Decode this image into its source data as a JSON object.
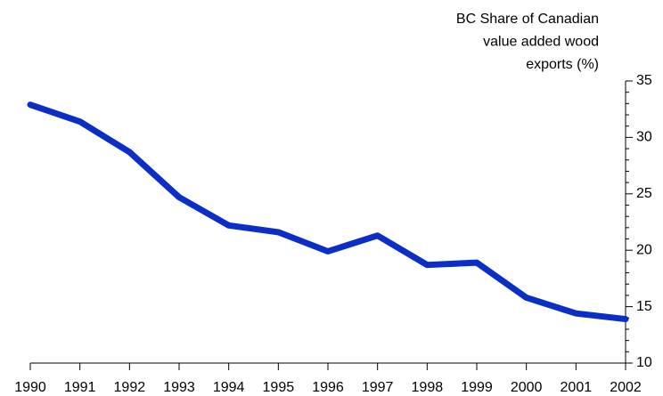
{
  "chart_data": {
    "type": "line",
    "y_label": [
      "BC Share of Canadian",
      "value added wood",
      "exports (%)"
    ],
    "x": [
      1990,
      1991,
      1992,
      1993,
      1994,
      1995,
      1996,
      1997,
      1998,
      1999,
      2000,
      2001,
      2002
    ],
    "series": [
      {
        "name": "BC Share",
        "color": "#0b2fc6",
        "values": [
          32.9,
          31.4,
          28.7,
          24.7,
          22.2,
          21.6,
          19.9,
          21.3,
          18.7,
          18.9,
          15.8,
          14.4,
          13.9
        ]
      }
    ],
    "xlim": [
      1990,
      2002
    ],
    "xticks": [
      1990,
      1991,
      1992,
      1993,
      1994,
      1995,
      1996,
      1997,
      1998,
      1999,
      2000,
      2001,
      2002
    ],
    "ylim": [
      10,
      35
    ],
    "yticks": [
      10,
      15,
      20,
      25,
      30,
      35
    ],
    "yminorticks": [
      11,
      12,
      13,
      14,
      16,
      17,
      18,
      19,
      21,
      22,
      23,
      24,
      26,
      27,
      28,
      29,
      31,
      32,
      33,
      34
    ],
    "y_axis_side": "right"
  }
}
